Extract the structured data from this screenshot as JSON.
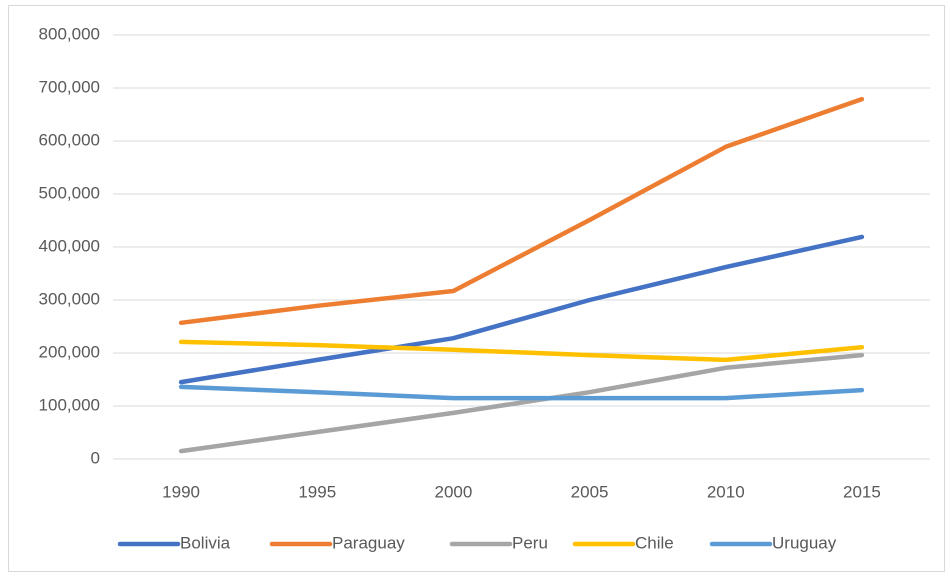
{
  "chart_data": {
    "type": "line",
    "categories": [
      "1990",
      "1995",
      "2000",
      "2005",
      "2010",
      "2015"
    ],
    "series": [
      {
        "name": "Bolivia",
        "color": "#4472c4",
        "values": [
          145000,
          187000,
          228000,
          300000,
          362000,
          419000
        ]
      },
      {
        "name": "Paraguay",
        "color": "#ed7d31",
        "values": [
          257000,
          289000,
          317000,
          451000,
          589000,
          679000
        ]
      },
      {
        "name": "Peru",
        "color": "#a5a5a5",
        "values": [
          15000,
          51000,
          87000,
          126000,
          172000,
          196000
        ]
      },
      {
        "name": "Chile",
        "color": "#ffc000",
        "values": [
          221000,
          215000,
          206000,
          196000,
          187000,
          211000
        ]
      },
      {
        "name": "Uruguay",
        "color": "#5b9bd5",
        "values": [
          136000,
          126000,
          115000,
          115000,
          115000,
          130000
        ]
      }
    ],
    "ylim": [
      0,
      800000
    ],
    "yticks": [
      {
        "value": 0,
        "label": "0"
      },
      {
        "value": 100000,
        "label": "100,000"
      },
      {
        "value": 200000,
        "label": "200,000"
      },
      {
        "value": 300000,
        "label": "300,000"
      },
      {
        "value": 400000,
        "label": "400,000"
      },
      {
        "value": 500000,
        "label": "500,000"
      },
      {
        "value": 600000,
        "label": "600,000"
      },
      {
        "value": 700000,
        "label": "700,000"
      },
      {
        "value": 800000,
        "label": "800,000"
      }
    ],
    "grid": true,
    "legend": "bottom"
  }
}
